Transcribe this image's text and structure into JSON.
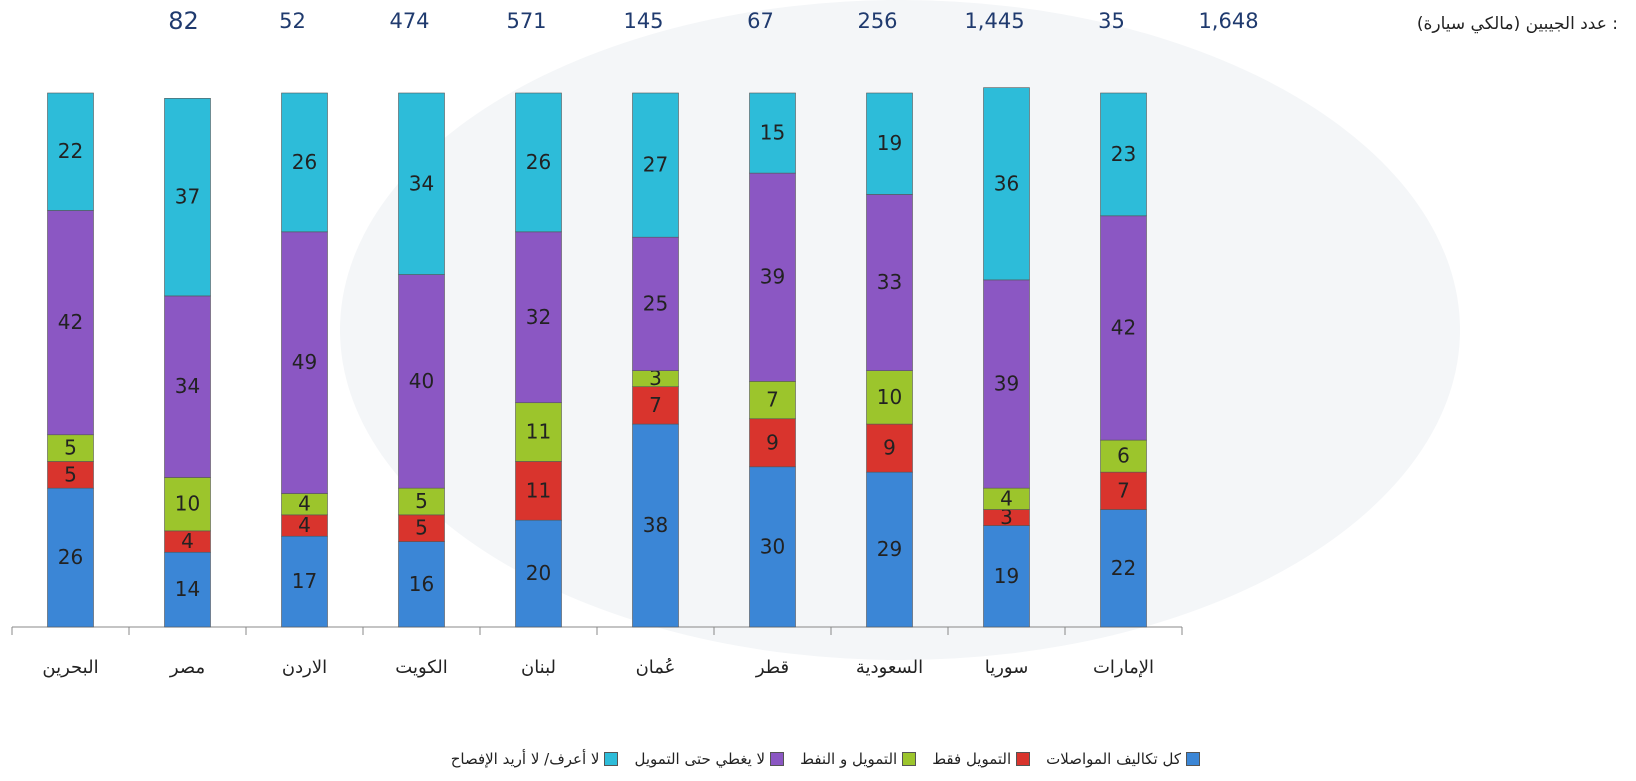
{
  "chart_data": {
    "type": "stacked_bar",
    "count_title": "عدد الجيبين (مالكي سيارة) :",
    "counts": [
      "82",
      "52",
      "474",
      "571",
      "145",
      "67",
      "256",
      "1,445",
      "35",
      "1,648"
    ],
    "categories": [
      "البحرين",
      "مصر",
      "الاردن",
      "الكويت",
      "لبنان",
      "عُمان",
      "قطر",
      "السعودية",
      "سوريا",
      "الإمارات"
    ],
    "series": [
      {
        "name": "كل تكاليف المواصلات",
        "color": "#3b86d6",
        "values": [
          26,
          14,
          17,
          16,
          20,
          38,
          30,
          29,
          19,
          22
        ]
      },
      {
        "name": "التمويل فقط",
        "color": "#d9342d",
        "values": [
          5,
          4,
          4,
          5,
          11,
          7,
          9,
          9,
          3,
          7
        ]
      },
      {
        "name": "التمويل و النفط",
        "color": "#9cc52c",
        "values": [
          5,
          10,
          4,
          5,
          11,
          3,
          7,
          10,
          4,
          6
        ]
      },
      {
        "name": "لا يغطي حتى التمويل",
        "color": "#8b57c3",
        "values": [
          42,
          34,
          49,
          40,
          32,
          25,
          39,
          33,
          39,
          42
        ]
      },
      {
        "name": "لا أعرف/ لا أريد الإفصاح",
        "color": "#2dbcd9",
        "values": [
          22,
          37,
          26,
          34,
          26,
          27,
          15,
          19,
          36,
          23
        ]
      }
    ]
  }
}
